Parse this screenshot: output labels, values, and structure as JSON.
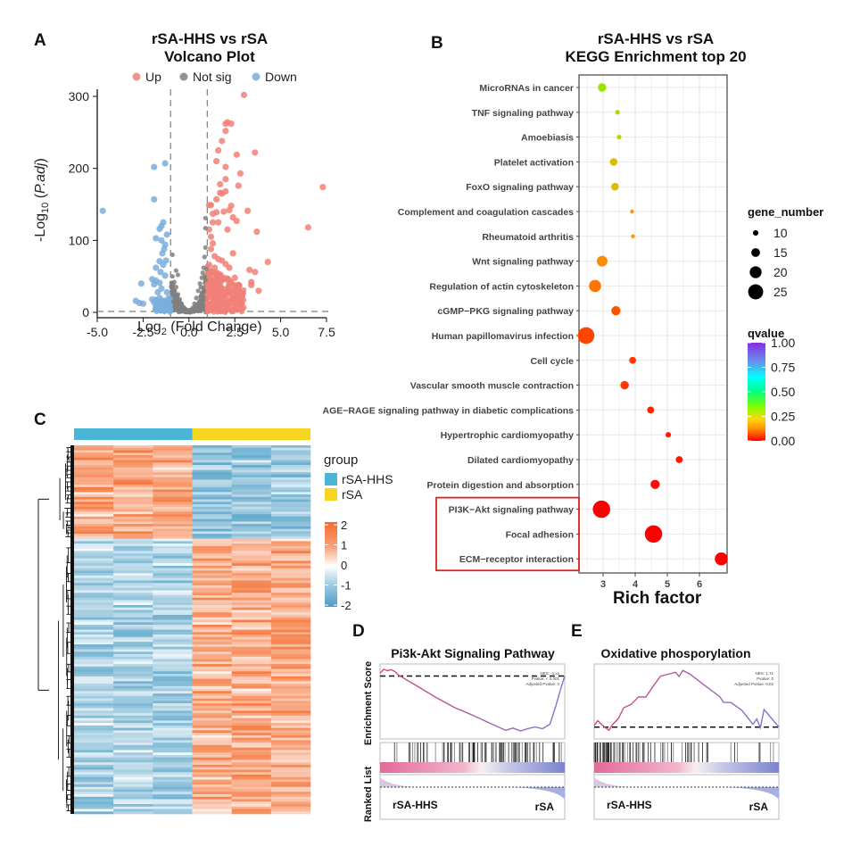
{
  "panels": {
    "A": {
      "letter": "A"
    },
    "B": {
      "letter": "B"
    },
    "C": {
      "letter": "C"
    },
    "D": {
      "letter": "D"
    },
    "E": {
      "letter": "E"
    }
  },
  "chart_data": [
    {
      "id": "A",
      "type": "scatter",
      "title": "rSA-HHS vs rSA",
      "subtitle": "Volcano Plot",
      "xlabel": "Log2 (Fold Change)",
      "xlabel_main": "Log",
      "xlabel_sub": "2",
      "xlabel_rest": " (Fold Change)",
      "ylabel_main": "-Log",
      "ylabel_sub": "10",
      "ylabel_rest": " (P.adj)",
      "xlim": [
        -5.0,
        7.5
      ],
      "ylim": [
        0,
        310
      ],
      "xticks": [
        -5.0,
        -2.5,
        0.0,
        2.5,
        5.0,
        7.5
      ],
      "xtick_labels": [
        "-5.0",
        "-2.5",
        "0.0",
        "2.5",
        "5.0",
        "7.5"
      ],
      "yticks": [
        0,
        100,
        200,
        300
      ],
      "ytick_labels": [
        "0",
        "100",
        "200",
        "300"
      ],
      "thresholds": {
        "log2fc": [
          -1,
          1
        ],
        "padj_line": 1.3
      },
      "legend": [
        {
          "label": "Up",
          "color": "#f08078"
        },
        {
          "label": "Not sig",
          "color": "#808080"
        },
        {
          "label": "Down",
          "color": "#7aaedc"
        }
      ],
      "series": [
        {
          "name": "Up",
          "color": "#f08078",
          "points": [
            [
              3.0,
              302
            ],
            [
              2.1,
              264
            ],
            [
              2.0,
              262
            ],
            [
              2.3,
              262
            ],
            [
              2.0,
              252
            ],
            [
              1.8,
              238
            ],
            [
              1.6,
              225
            ],
            [
              3.6,
              222
            ],
            [
              2.6,
              219
            ],
            [
              1.5,
              210
            ],
            [
              2.0,
              202
            ],
            [
              2.8,
              193
            ],
            [
              2.0,
              185
            ],
            [
              1.7,
              178
            ],
            [
              2.7,
              176
            ],
            [
              2.0,
              168
            ],
            [
              1.7,
              166
            ],
            [
              1.8,
              165
            ],
            [
              1.5,
              157
            ],
            [
              7.3,
              174
            ],
            [
              2.3,
              148
            ],
            [
              1.2,
              149
            ],
            [
              1.1,
              149
            ],
            [
              2.2,
              142
            ],
            [
              3.2,
              141
            ],
            [
              1.5,
              139
            ],
            [
              1.3,
              137
            ],
            [
              1.9,
              140
            ],
            [
              2.4,
              132
            ],
            [
              2.6,
              127
            ],
            [
              6.5,
              118
            ],
            [
              1.3,
              125
            ],
            [
              1.6,
              125
            ],
            [
              3.7,
              112
            ],
            [
              2.1,
              115
            ],
            [
              1.1,
              115
            ],
            [
              1.2,
              105
            ],
            [
              1.3,
              96
            ],
            [
              1.2,
              88
            ],
            [
              2.4,
              82
            ],
            [
              1.4,
              78
            ],
            [
              1.6,
              74
            ],
            [
              4.3,
              70
            ],
            [
              1.8,
              72
            ],
            [
              2.0,
              67
            ],
            [
              2.2,
              62
            ],
            [
              3.3,
              59
            ],
            [
              3.6,
              56
            ],
            [
              3.4,
              42
            ],
            [
              3.4,
              38
            ],
            [
              3.8,
              30
            ],
            [
              2.5,
              48
            ],
            [
              2.2,
              40
            ],
            [
              2.7,
              25
            ],
            [
              2.9,
              24
            ],
            [
              1.5,
              55
            ],
            [
              1.3,
              50
            ],
            [
              1.8,
              45
            ],
            [
              1.2,
              35
            ],
            [
              1.6,
              30
            ],
            [
              1.4,
              22
            ],
            [
              1.9,
              18
            ],
            [
              2.2,
              14
            ],
            [
              1.1,
              10
            ],
            [
              1.3,
              8
            ],
            [
              1.5,
              5
            ],
            [
              1.2,
              3
            ],
            [
              2.6,
              10
            ],
            [
              2.0,
              28
            ],
            [
              1.7,
              38
            ],
            [
              1.4,
              62
            ],
            [
              1.1,
              66
            ],
            [
              1.25,
              42
            ],
            [
              1.6,
              12
            ],
            [
              1.9,
              6
            ],
            [
              2.3,
              3
            ]
          ]
        },
        {
          "name": "Not sig",
          "color": "#808080",
          "points": [
            [
              0.9,
              131
            ],
            [
              0.9,
              117
            ],
            [
              0.9,
              90
            ],
            [
              0.85,
              77
            ],
            [
              0.8,
              62
            ],
            [
              0.75,
              55
            ],
            [
              0.7,
              48
            ],
            [
              0.6,
              40
            ],
            [
              0.5,
              30
            ],
            [
              0.4,
              20
            ],
            [
              0.3,
              12
            ],
            [
              0.2,
              6
            ],
            [
              0.1,
              2
            ],
            [
              0.0,
              0.5
            ],
            [
              -0.1,
              1
            ],
            [
              -0.2,
              3
            ],
            [
              -0.3,
              7
            ],
            [
              -0.4,
              12
            ],
            [
              -0.5,
              18
            ],
            [
              -0.6,
              25
            ],
            [
              -0.7,
              35
            ],
            [
              -0.8,
              42
            ],
            [
              -0.9,
              50
            ],
            [
              -0.95,
              28
            ],
            [
              -0.9,
              80
            ],
            [
              -0.7,
              58
            ],
            [
              -0.6,
              52
            ],
            [
              -0.8,
              30
            ],
            [
              0.8,
              30
            ],
            [
              0.7,
              20
            ],
            [
              0.6,
              15
            ],
            [
              0.9,
              45
            ],
            [
              0.95,
              60
            ],
            [
              0.85,
              50
            ],
            [
              0.5,
              10
            ],
            [
              -0.5,
              8
            ],
            [
              -0.85,
              15
            ],
            [
              -0.75,
              20
            ],
            [
              0.65,
              35
            ],
            [
              0.3,
              4
            ],
            [
              -0.3,
              2
            ]
          ]
        },
        {
          "name": "Down",
          "color": "#7aaedc",
          "points": [
            [
              -4.7,
              141
            ],
            [
              -1.3,
              207
            ],
            [
              -1.9,
              202
            ],
            [
              -1.9,
              157
            ],
            [
              -1.4,
              125
            ],
            [
              -1.5,
              120
            ],
            [
              -1.6,
              116
            ],
            [
              -1.2,
              108
            ],
            [
              -1.8,
              103
            ],
            [
              -1.5,
              100
            ],
            [
              -1.3,
              94
            ],
            [
              -1.35,
              88
            ],
            [
              -1.45,
              82
            ],
            [
              -1.25,
              72
            ],
            [
              -1.6,
              71
            ],
            [
              -1.8,
              62
            ],
            [
              -1.4,
              66
            ],
            [
              -1.55,
              56
            ],
            [
              -1.3,
              51
            ],
            [
              -2.0,
              46
            ],
            [
              -1.8,
              44
            ],
            [
              -1.6,
              41
            ],
            [
              -2.6,
              40
            ],
            [
              -1.9,
              39
            ],
            [
              -1.5,
              33
            ],
            [
              -1.7,
              28
            ],
            [
              -1.2,
              28
            ],
            [
              -2.9,
              16
            ],
            [
              -2.7,
              13
            ],
            [
              -2.5,
              12
            ],
            [
              -2.0,
              18
            ],
            [
              -1.9,
              14
            ],
            [
              -1.7,
              10
            ],
            [
              -1.5,
              8
            ],
            [
              -1.3,
              15
            ],
            [
              -1.1,
              20
            ],
            [
              -1.6,
              20
            ],
            [
              -1.4,
              5
            ],
            [
              -1.8,
              6
            ],
            [
              -1.2,
              3
            ]
          ]
        }
      ]
    },
    {
      "id": "B",
      "type": "scatter",
      "title": "rSA-HHS vs rSA",
      "subtitle": "KEGG Enrichment top 20",
      "xlabel": "Rich factor",
      "ylabel": "",
      "xlim": [
        2.2,
        6.85
      ],
      "xticks": [
        3,
        4,
        5,
        6
      ],
      "xtick_labels": [
        "3",
        "4",
        "5",
        "6"
      ],
      "grid": true,
      "categories": [
        "MicroRNAs in cancer",
        "TNF signaling pathway",
        "Amoebiasis",
        "Platelet activation",
        "FoxO signaling pathway",
        "Complement and coagulation cascades",
        "Rheumatoid arthritis",
        "Wnt signaling pathway",
        "Regulation of actin cytoskeleton",
        "cGMP−PKG signaling pathway",
        "Human papillomavirus infection",
        "Cell cycle",
        "Vascular smooth muscle contraction",
        "AGE−RAGE signaling pathway in diabetic complications",
        "Hypertrophic cardiomyopathy",
        "Dilated cardiomyopathy",
        "Protein digestion and absorption",
        "PI3K−Akt signaling pathway",
        "Focal adhesion",
        "ECM−receptor interaction"
      ],
      "rich_factor": [
        2.97,
        3.45,
        3.5,
        3.33,
        3.37,
        3.9,
        3.93,
        2.97,
        2.75,
        3.4,
        2.47,
        3.92,
        3.67,
        4.48,
        5.03,
        5.37,
        4.62,
        2.95,
        4.57,
        6.68
      ],
      "gene_number": [
        14,
        9,
        9,
        13,
        13,
        8,
        8,
        17,
        19,
        15,
        25,
        12,
        14,
        12,
        10,
        12,
        15,
        26,
        26,
        20
      ],
      "qvalue": [
        0.3,
        0.28,
        0.27,
        0.2,
        0.2,
        0.14,
        0.14,
        0.12,
        0.1,
        0.07,
        0.06,
        0.05,
        0.05,
        0.03,
        0.02,
        0.02,
        0.01,
        0.0,
        0.0,
        0.0
      ],
      "highlighted": [
        "PI3K−Akt signaling pathway",
        "Focal adhesion",
        "ECM−receptor interaction"
      ],
      "highlight_color": "#e02020",
      "size_legend": {
        "title": "gene_number",
        "values": [
          10,
          15,
          20,
          25
        ],
        "labels": [
          "10",
          "15",
          "20",
          "25"
        ]
      },
      "color_legend": {
        "title": "qvalue",
        "values": [
          1.0,
          0.75,
          0.5,
          0.25,
          0.0
        ],
        "labels": [
          "1.00",
          "0.75",
          "0.50",
          "0.25",
          "0.00"
        ],
        "colors": [
          "#8a2be2",
          "#00ffff",
          "#00ff00",
          "#ffff00",
          "#ff0000"
        ]
      }
    },
    {
      "id": "C",
      "type": "heatmap",
      "groups": [
        {
          "label": "rSA-HHS",
          "color": "#4bb5d6",
          "columns": 3
        },
        {
          "label": "rSA",
          "color": "#f8d520",
          "columns": 3
        }
      ],
      "group_legend_title": "group",
      "scale": {
        "min": -2,
        "max": 2,
        "ticks": [
          2,
          1,
          0,
          -1,
          -2
        ],
        "tick_labels": [
          "2",
          "1",
          "0",
          "-1",
          "-2"
        ],
        "low_color": "#4a9cc4",
        "mid_color": "#ffffff",
        "high_color": "#f46a2a"
      },
      "clusters": [
        {
          "rows_fraction": 0.25,
          "pattern": "up_in_rSA-HHS",
          "approx_values": [
            1.3,
            -1.2
          ]
        },
        {
          "rows_fraction": 0.75,
          "pattern": "down_in_rSA-HHS",
          "approx_values": [
            -1.0,
            1.3
          ]
        }
      ],
      "dendrogram": true
    },
    {
      "id": "D",
      "type": "line",
      "title": "Pi3k-Akt Signaling Pathway",
      "ylabel_top": "Enrichment Score",
      "ylabel_bottom": "Ranked List",
      "annotation": [
        "NES: -1.xx",
        "Pvalue: < 0.001",
        "Adjusted Pvalue: 0"
      ],
      "group_left": "rSA-HHS",
      "group_right": "rSA",
      "ylim": [
        -0.42,
        0.06
      ],
      "es_curve": [
        [
          0,
          0.02
        ],
        [
          0.02,
          0.05
        ],
        [
          0.04,
          0.04
        ],
        [
          0.06,
          0.045
        ],
        [
          0.08,
          0.03
        ],
        [
          0.1,
          0.01
        ],
        [
          0.2,
          -0.07
        ],
        [
          0.3,
          -0.15
        ],
        [
          0.4,
          -0.22
        ],
        [
          0.5,
          -0.28
        ],
        [
          0.6,
          -0.34
        ],
        [
          0.68,
          -0.38
        ],
        [
          0.72,
          -0.37
        ],
        [
          0.76,
          -0.39
        ],
        [
          0.8,
          -0.37
        ],
        [
          0.84,
          -0.36
        ],
        [
          0.88,
          -0.37
        ],
        [
          0.92,
          -0.34
        ],
        [
          0.95,
          -0.22
        ],
        [
          0.98,
          -0.08
        ],
        [
          1.0,
          0.0
        ]
      ],
      "hit_density": "increasing toward right"
    },
    {
      "id": "E",
      "type": "line",
      "title": "Oxidative phosporylation",
      "annotation": [
        "NES: 1.71",
        "Pvalue: 0",
        "Adjusted Pvalue: 0.02"
      ],
      "group_left": "rSA-HHS",
      "group_right": "rSA",
      "ylim": [
        -0.05,
        0.36
      ],
      "es_curve": [
        [
          0,
          0.01
        ],
        [
          0.02,
          0.04
        ],
        [
          0.05,
          0.01
        ],
        [
          0.08,
          -0.02
        ],
        [
          0.1,
          0.02
        ],
        [
          0.13,
          0.05
        ],
        [
          0.16,
          0.12
        ],
        [
          0.2,
          0.14
        ],
        [
          0.24,
          0.18
        ],
        [
          0.28,
          0.18
        ],
        [
          0.32,
          0.25
        ],
        [
          0.36,
          0.31
        ],
        [
          0.4,
          0.32
        ],
        [
          0.44,
          0.33
        ],
        [
          0.46,
          0.31
        ],
        [
          0.48,
          0.34
        ],
        [
          0.52,
          0.32
        ],
        [
          0.6,
          0.25
        ],
        [
          0.68,
          0.18
        ],
        [
          0.7,
          0.15
        ],
        [
          0.74,
          0.15
        ],
        [
          0.8,
          0.1
        ],
        [
          0.86,
          0.02
        ],
        [
          0.88,
          0.05
        ],
        [
          0.9,
          0.0
        ],
        [
          0.92,
          0.11
        ],
        [
          1.0,
          0.0
        ]
      ],
      "hit_density": "concentrated on left"
    }
  ]
}
